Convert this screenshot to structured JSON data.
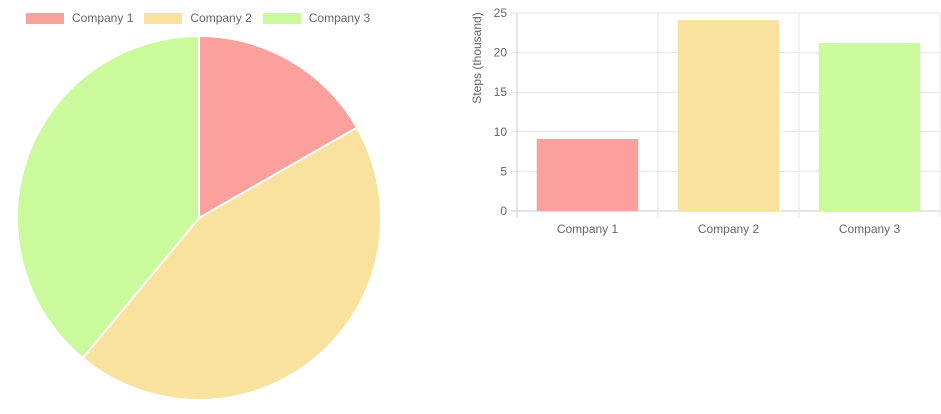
{
  "colors": [
    "#fba09d",
    "#f9e29d",
    "#cbfa9d"
  ],
  "legend": [
    "Company 1",
    "Company 2",
    "Company 3"
  ],
  "chart_data": [
    {
      "type": "pie",
      "categories": [
        "Company 1",
        "Company 2",
        "Company 3"
      ],
      "values": [
        9.1,
        24.1,
        21.2
      ]
    },
    {
      "type": "bar",
      "categories": [
        "Company 1",
        "Company 2",
        "Company 3"
      ],
      "values": [
        9.1,
        24.1,
        21.2
      ],
      "ylabel": "Steps (thousand)",
      "ylim": [
        0,
        25
      ],
      "yticks": [
        0,
        5,
        10,
        15,
        20,
        25
      ],
      "grid": true
    }
  ]
}
